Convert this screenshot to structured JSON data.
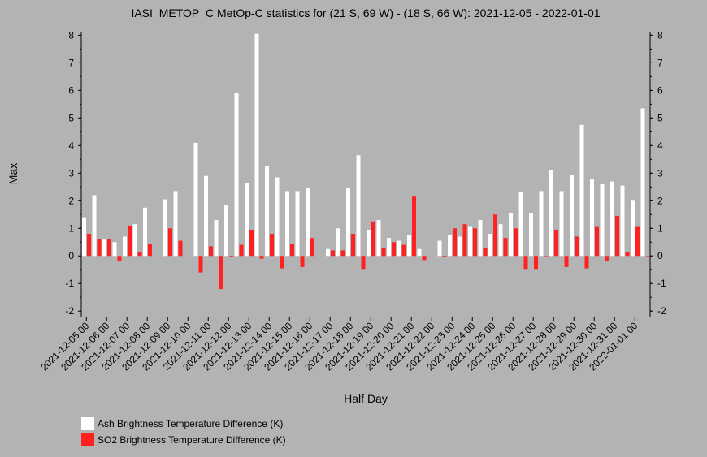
{
  "chart_data": {
    "type": "bar",
    "title": "IASI_METOP_C MetOp-C statistics for (21 S, 69 W) - (18 S, 66 W): 2021-12-05 - 2022-01-01",
    "xlabel": "Half Day",
    "ylabel": "Max",
    "ylim": [
      -2.2,
      8.1
    ],
    "yticks": [
      -2,
      -1,
      0,
      1,
      2,
      3,
      4,
      5,
      6,
      7,
      8
    ],
    "grid": false,
    "legend_position": "bottom-left",
    "categories": [
      "2021-12-05 00",
      "2021-12-05 12",
      "2021-12-06 00",
      "2021-12-06 12",
      "2021-12-07 00",
      "2021-12-07 12",
      "2021-12-08 00",
      "2021-12-08 12",
      "2021-12-09 00",
      "2021-12-09 12",
      "2021-12-10 00",
      "2021-12-10 12",
      "2021-12-11 00",
      "2021-12-11 12",
      "2021-12-12 00",
      "2021-12-12 12",
      "2021-12-13 00",
      "2021-12-13 12",
      "2021-12-14 00",
      "2021-12-14 12",
      "2021-12-15 00",
      "2021-12-15 12",
      "2021-12-16 00",
      "2021-12-16 12",
      "2021-12-17 00",
      "2021-12-17 12",
      "2021-12-18 00",
      "2021-12-18 12",
      "2021-12-19 00",
      "2021-12-19 12",
      "2021-12-20 00",
      "2021-12-20 12",
      "2021-12-21 00",
      "2021-12-21 12",
      "2021-12-22 00",
      "2021-12-22 12",
      "2021-12-23 00",
      "2021-12-23 12",
      "2021-12-24 00",
      "2021-12-24 12",
      "2021-12-25 00",
      "2021-12-25 12",
      "2021-12-26 00",
      "2021-12-26 12",
      "2021-12-27 00",
      "2021-12-27 12",
      "2021-12-28 00",
      "2021-12-28 12",
      "2021-12-29 00",
      "2021-12-29 12",
      "2021-12-30 00",
      "2021-12-30 12",
      "2021-12-31 00",
      "2021-12-31 12",
      "2022-01-01 00",
      "2022-01-01 12"
    ],
    "tick_labels": [
      "2021-12-05 00",
      "2021-12-06 00",
      "2021-12-07 00",
      "2021-12-08 00",
      "2021-12-09 00",
      "2021-12-10 00",
      "2021-12-11 00",
      "2021-12-12 00",
      "2021-12-13 00",
      "2021-12-14 00",
      "2021-12-15 00",
      "2021-12-16 00",
      "2021-12-17 00",
      "2021-12-18 00",
      "2021-12-19 00",
      "2021-12-20 00",
      "2021-12-21 00",
      "2021-12-22 00",
      "2021-12-23 00",
      "2021-12-24 00",
      "2021-12-25 00",
      "2021-12-26 00",
      "2021-12-27 00",
      "2021-12-28 00",
      "2021-12-29 00",
      "2021-12-30 00",
      "2021-12-31 00",
      "2022-01-01 00"
    ],
    "series": [
      {
        "name": "Ash Brightness Temperature Difference (K)",
        "color": "#ffffff",
        "values": [
          1.4,
          2.2,
          0.6,
          0.5,
          0.7,
          1.15,
          1.75,
          null,
          2.05,
          2.35,
          null,
          4.1,
          2.9,
          1.3,
          1.85,
          5.9,
          2.65,
          8.05,
          3.25,
          2.85,
          2.35,
          2.35,
          2.45,
          null,
          0.25,
          1.0,
          2.45,
          3.65,
          0.95,
          1.3,
          0.65,
          0.55,
          0.75,
          0.25,
          null,
          0.55,
          0.75,
          0.7,
          1.05,
          1.3,
          0.8,
          1.15,
          1.55,
          2.3,
          1.55,
          2.35,
          3.1,
          2.35,
          2.95,
          4.75,
          2.8,
          2.6,
          2.7,
          2.55,
          2.0,
          5.35
        ]
      },
      {
        "name": "SO2 Brightness Temperature Difference (K)",
        "color": "#ff2020",
        "values": [
          0.8,
          0.6,
          0.6,
          -0.2,
          1.1,
          0.15,
          0.45,
          null,
          1.0,
          0.55,
          null,
          -0.6,
          0.35,
          -1.2,
          -0.05,
          0.4,
          0.95,
          -0.1,
          0.8,
          -0.45,
          0.45,
          -0.4,
          0.65,
          null,
          0.2,
          0.2,
          0.8,
          -0.5,
          1.25,
          0.3,
          0.5,
          0.4,
          2.15,
          -0.15,
          null,
          -0.05,
          1.0,
          1.15,
          1.0,
          0.3,
          1.5,
          0.65,
          1.0,
          -0.5,
          -0.5,
          0.0,
          0.95,
          -0.4,
          0.7,
          -0.45,
          1.05,
          -0.2,
          1.45,
          0.15,
          1.05,
          0.0
        ]
      }
    ]
  }
}
